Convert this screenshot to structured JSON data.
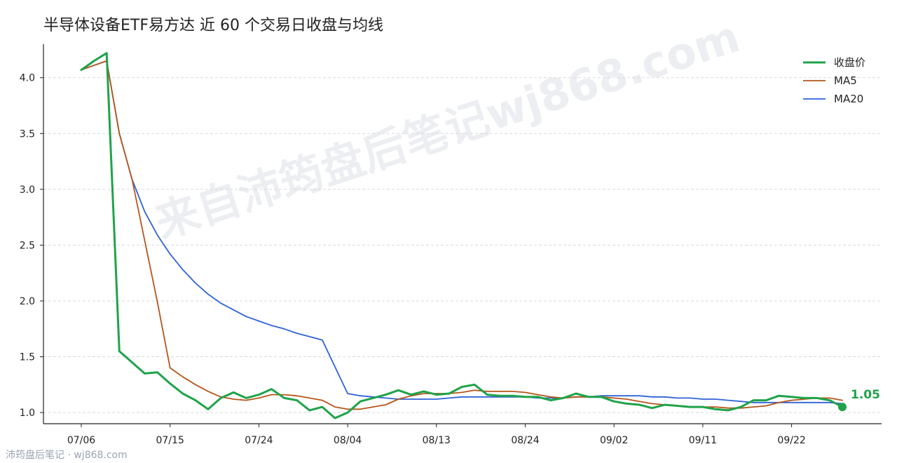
{
  "title": "半导体设备ETF易方达 近 60 个交易日收盘与均线",
  "watermark": "来自沛筠盘后笔记wj868.com",
  "footer": "沛筠盘后笔记 · wj868.com",
  "colors": {
    "close": "#1fa34a",
    "ma5": "#b5561b",
    "ma20": "#2f63d6"
  },
  "chart_data": {
    "type": "line",
    "title": "半导体设备ETF易方达 近 60 个交易日收盘与均线",
    "xlabel": "",
    "ylabel": "",
    "ylim": [
      0.9,
      4.3
    ],
    "yticks": [
      1.0,
      1.5,
      2.0,
      2.5,
      3.0,
      3.5,
      4.0
    ],
    "ytick_labels": [
      "1.0",
      "1.5",
      "2.0",
      "2.5",
      "3.0",
      "3.5",
      "4.0"
    ],
    "xtick_labels": [
      "07/06",
      "07/15",
      "07/24",
      "08/04",
      "08/13",
      "08/24",
      "09/02",
      "09/11",
      "09/22"
    ],
    "xtick_indices": [
      0,
      7,
      14,
      21,
      28,
      35,
      42,
      49,
      56
    ],
    "grid": "horizontal-dashed",
    "legend_position": "top-right",
    "last_value_label": "1.05",
    "series": [
      {
        "name": "收盘价",
        "values": [
          4.07,
          4.15,
          4.22,
          1.55,
          1.45,
          1.35,
          1.36,
          1.26,
          1.17,
          1.11,
          1.03,
          1.13,
          1.18,
          1.13,
          1.16,
          1.21,
          1.13,
          1.11,
          1.02,
          1.05,
          0.95,
          1.0,
          1.1,
          1.13,
          1.16,
          1.2,
          1.16,
          1.19,
          1.16,
          1.17,
          1.23,
          1.25,
          1.16,
          1.15,
          1.15,
          1.14,
          1.14,
          1.11,
          1.13,
          1.17,
          1.14,
          1.14,
          1.1,
          1.08,
          1.07,
          1.04,
          1.07,
          1.06,
          1.05,
          1.05,
          1.03,
          1.02,
          1.05,
          1.11,
          1.11,
          1.15,
          1.14,
          1.13,
          1.13,
          1.11,
          1.05
        ]
      },
      {
        "name": "MA5",
        "values": [
          4.07,
          4.11,
          4.15,
          3.5,
          3.09,
          2.54,
          1.99,
          1.4,
          1.32,
          1.25,
          1.19,
          1.14,
          1.12,
          1.11,
          1.13,
          1.16,
          1.16,
          1.15,
          1.13,
          1.11,
          1.05,
          1.03,
          1.03,
          1.05,
          1.07,
          1.12,
          1.15,
          1.17,
          1.17,
          1.17,
          1.18,
          1.2,
          1.19,
          1.19,
          1.19,
          1.18,
          1.16,
          1.14,
          1.13,
          1.14,
          1.14,
          1.14,
          1.13,
          1.12,
          1.1,
          1.08,
          1.07,
          1.06,
          1.05,
          1.05,
          1.05,
          1.04,
          1.04,
          1.05,
          1.06,
          1.09,
          1.11,
          1.12,
          1.13,
          1.13,
          1.11
        ]
      },
      {
        "name": "MA20",
        "values": [
          4.07,
          4.11,
          4.15,
          3.5,
          3.09,
          2.8,
          2.59,
          2.42,
          2.28,
          2.16,
          2.06,
          1.98,
          1.92,
          1.86,
          1.82,
          1.78,
          1.75,
          1.71,
          1.68,
          1.65,
          1.41,
          1.17,
          1.15,
          1.14,
          1.13,
          1.12,
          1.12,
          1.12,
          1.12,
          1.13,
          1.14,
          1.14,
          1.14,
          1.14,
          1.14,
          1.14,
          1.13,
          1.13,
          1.13,
          1.14,
          1.14,
          1.15,
          1.15,
          1.15,
          1.15,
          1.14,
          1.14,
          1.13,
          1.13,
          1.12,
          1.12,
          1.11,
          1.1,
          1.09,
          1.09,
          1.09,
          1.09,
          1.09,
          1.09,
          1.09,
          1.08
        ]
      }
    ]
  }
}
